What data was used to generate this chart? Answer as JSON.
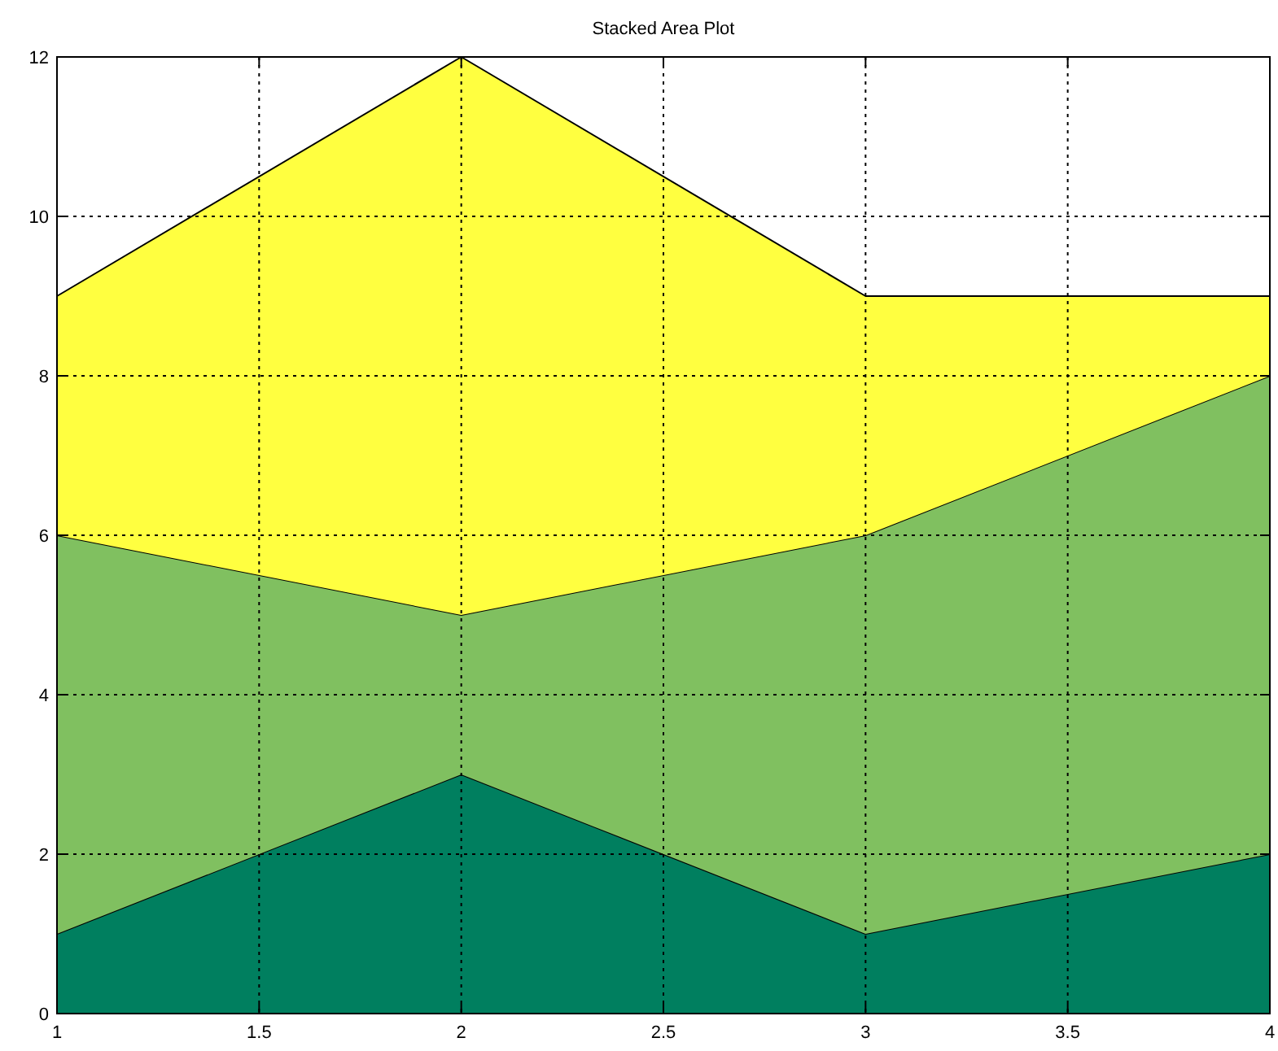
{
  "chart_data": {
    "type": "area",
    "title": "Stacked Area Plot",
    "stacked": true,
    "x": [
      1,
      2,
      3,
      4
    ],
    "series": [
      {
        "color": "#007f5f",
        "values": [
          1,
          3,
          1,
          2
        ]
      },
      {
        "color": "#80c060",
        "values": [
          5,
          2,
          5,
          6
        ]
      },
      {
        "color": "#ffff40",
        "values": [
          3,
          7,
          3,
          1
        ]
      }
    ],
    "xlim": [
      1,
      4
    ],
    "xticks": [
      1,
      1.5,
      2,
      2.5,
      3,
      3.5,
      4
    ],
    "ylim": [
      0,
      12
    ],
    "yticks": [
      0,
      2,
      4,
      6,
      8,
      10,
      12
    ],
    "grid": true
  }
}
